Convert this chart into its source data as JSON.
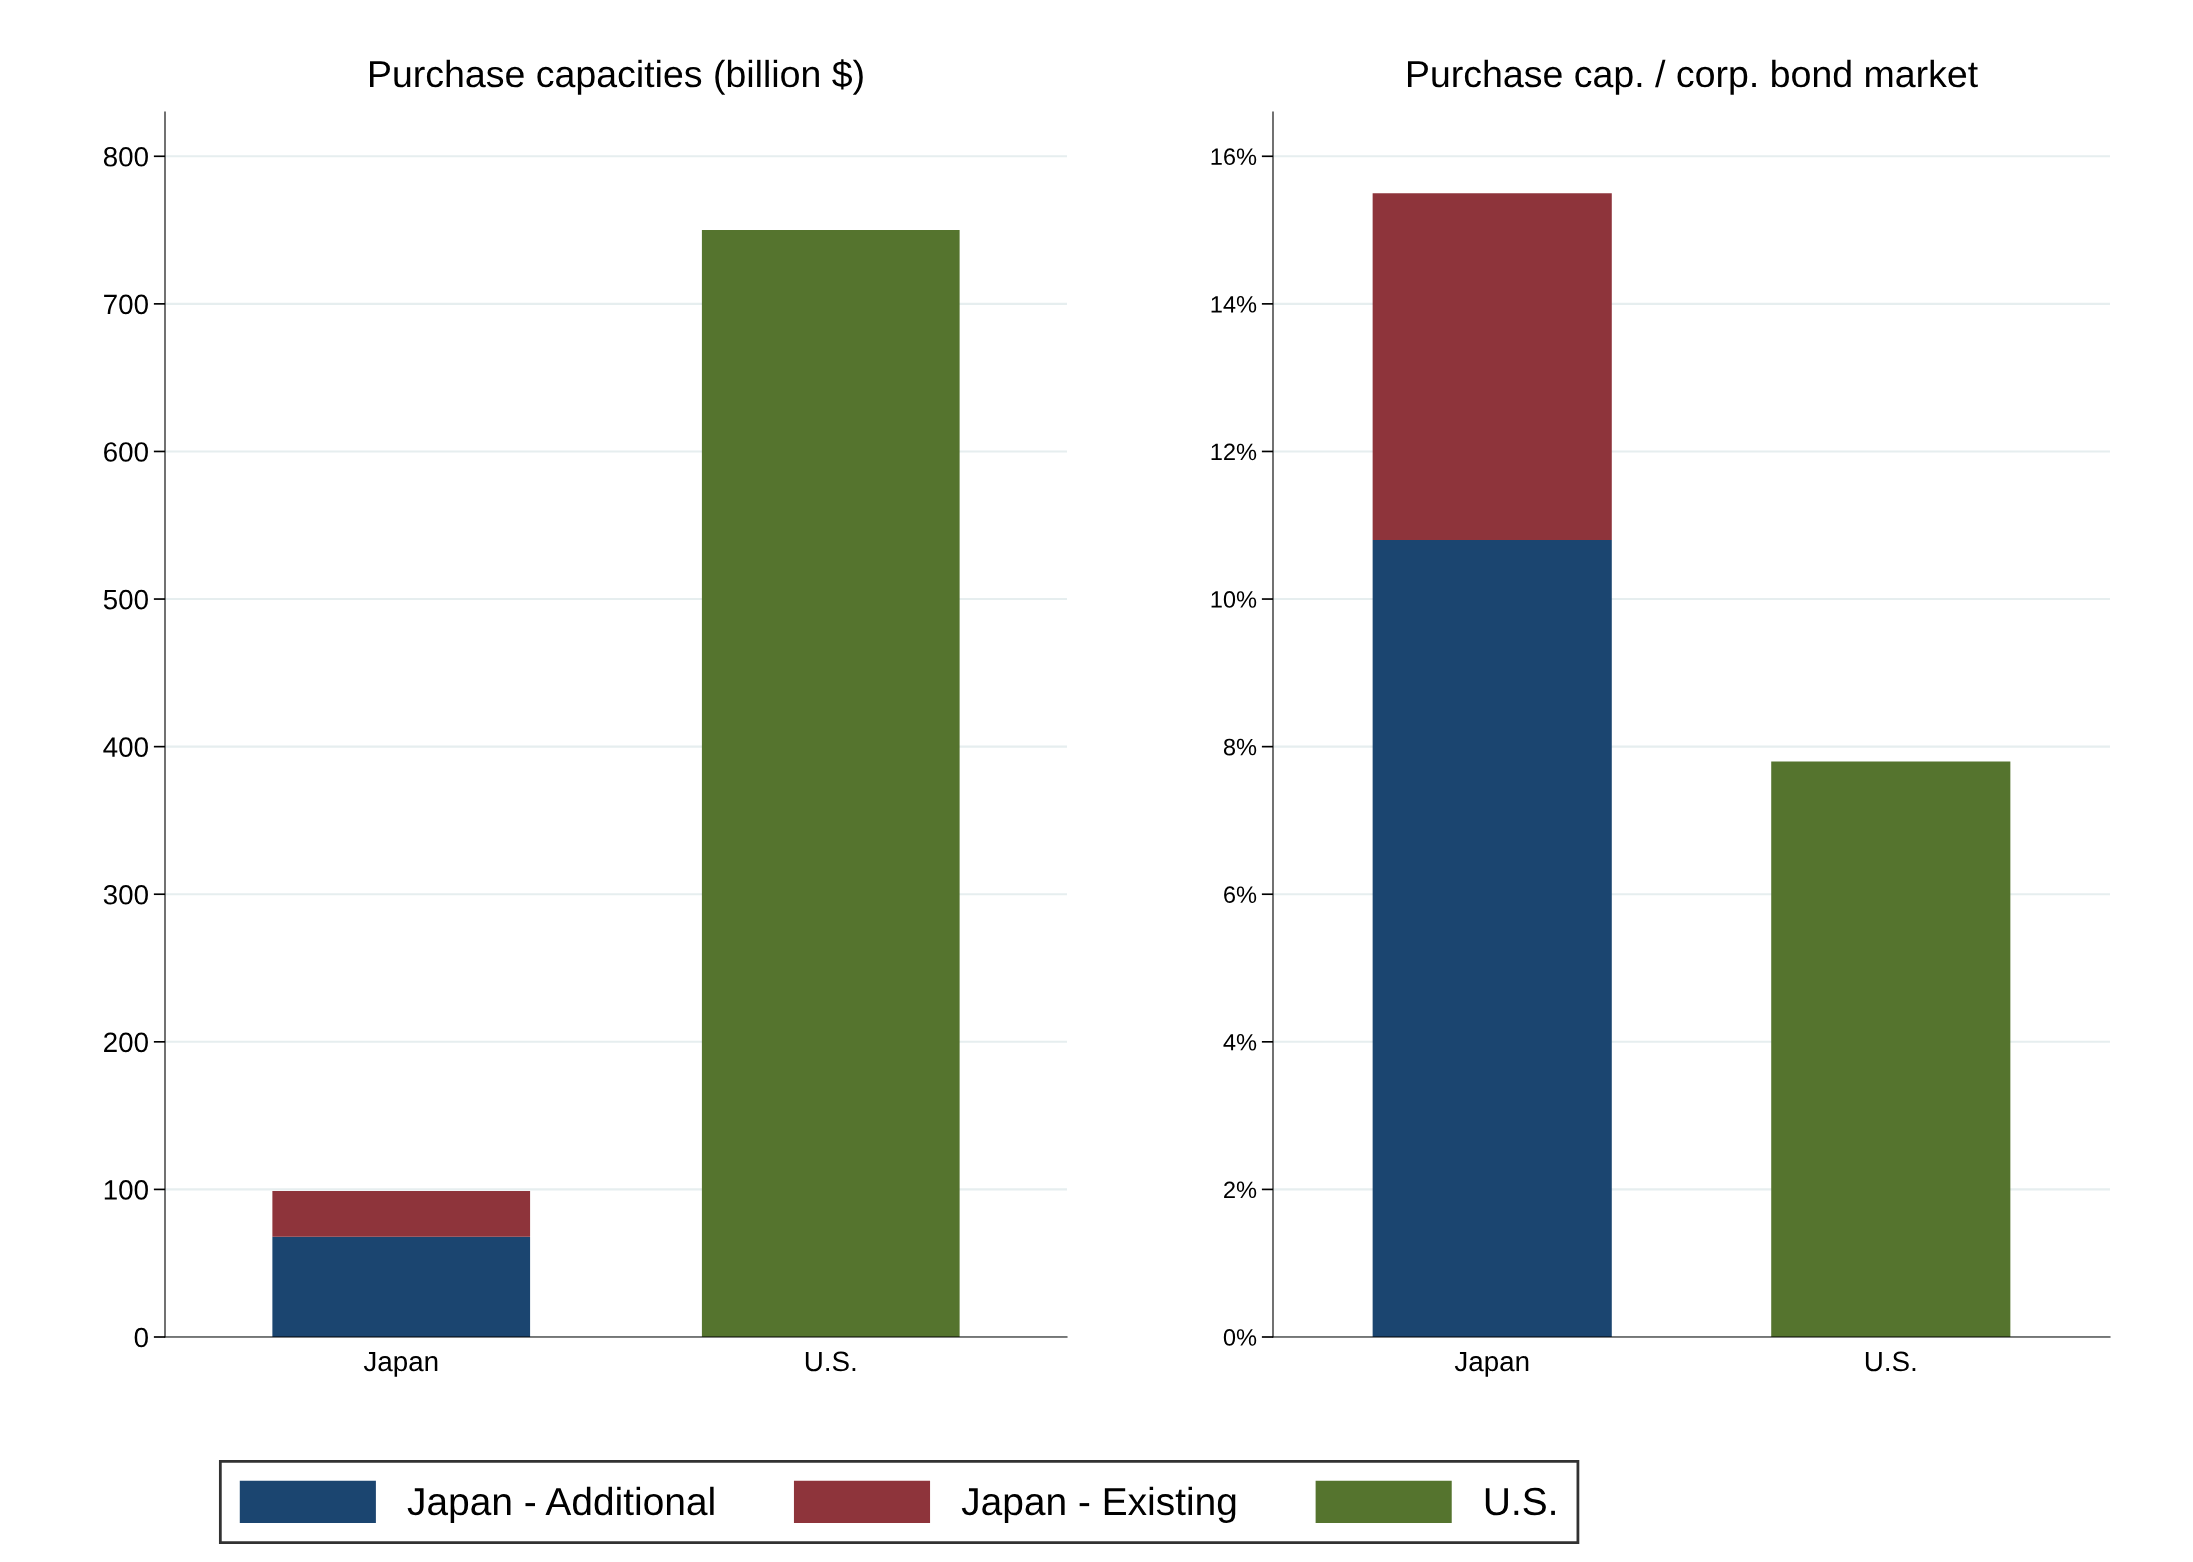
{
  "chart_data": [
    {
      "type": "bar",
      "title": "Purchase capacities (billion $)",
      "categories": [
        "Japan",
        "U.S."
      ],
      "stacked": true,
      "grid": "y",
      "legend": "bottom",
      "ylim": [
        0,
        830
      ],
      "yticks": [
        0,
        100,
        200,
        300,
        400,
        500,
        600,
        700,
        800
      ],
      "series": [
        {
          "name": "Japan - Additional",
          "color": "#1b4570",
          "values": [
            68,
            null
          ]
        },
        {
          "name": "Japan - Existing",
          "color": "#8e343b",
          "values": [
            31,
            null
          ]
        },
        {
          "name": "U.S.",
          "color": "#55742e",
          "values": [
            null,
            750
          ]
        }
      ]
    },
    {
      "type": "bar",
      "title": "Purchase cap. / corp. bond market",
      "categories": [
        "Japan",
        "U.S."
      ],
      "stacked": true,
      "grid": "y",
      "ylim": [
        0,
        16.6
      ],
      "yticks": [
        {
          "value": 0,
          "label": "0%"
        },
        {
          "value": 2,
          "label": "2%"
        },
        {
          "value": 4,
          "label": "4%"
        },
        {
          "value": 6,
          "label": "6%"
        },
        {
          "value": 8,
          "label": "8%"
        },
        {
          "value": 10,
          "label": "10%"
        },
        {
          "value": 12,
          "label": "12%"
        },
        {
          "value": 14,
          "label": "14%"
        },
        {
          "value": 16,
          "label": "16%"
        }
      ],
      "series": [
        {
          "name": "Japan - Additional",
          "color": "#1b4570",
          "values": [
            10.8,
            null
          ]
        },
        {
          "name": "Japan - Existing",
          "color": "#8e343b",
          "values": [
            4.7,
            null
          ]
        },
        {
          "name": "U.S.",
          "color": "#55742e",
          "values": [
            null,
            7.8
          ]
        }
      ]
    }
  ]
}
